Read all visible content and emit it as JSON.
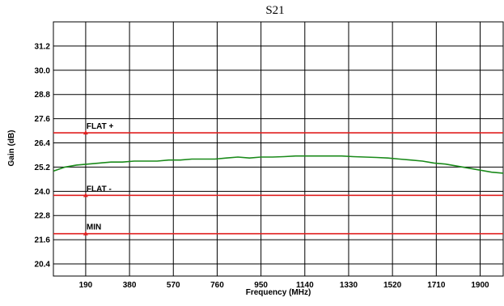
{
  "chart_data": {
    "type": "line",
    "title": "S21",
    "xlabel": "Frequency (MHz)",
    "ylabel": "Gain (dB)",
    "xlim": [
      50,
      2000
    ],
    "ylim": [
      19.8,
      32.4
    ],
    "x_ticks": [
      190,
      380,
      570,
      760,
      950,
      1140,
      1330,
      1520,
      1710,
      1900
    ],
    "x_tick_labels": [
      "190",
      "380",
      "570",
      "760",
      "950",
      "1140",
      "1330",
      "1520",
      "1710",
      "1900"
    ],
    "y_ticks": [
      20.4,
      21.6,
      22.8,
      24.0,
      25.2,
      26.4,
      27.6,
      28.8,
      30.0,
      31.2
    ],
    "y_tick_labels": [
      "20.4",
      "21.6",
      "22.8",
      "24.0",
      "25.2",
      "26.4",
      "27.6",
      "28.8",
      "30.0",
      "31.2"
    ],
    "grid": true,
    "series": [
      {
        "color": "#1a8a1a",
        "x": [
          50,
          100,
          150,
          200,
          250,
          300,
          350,
          400,
          450,
          500,
          550,
          600,
          650,
          700,
          750,
          800,
          850,
          900,
          950,
          1000,
          1050,
          1100,
          1150,
          1200,
          1250,
          1300,
          1350,
          1400,
          1450,
          1500,
          1550,
          1600,
          1650,
          1700,
          1750,
          1800,
          1850,
          1900,
          1950,
          2000
        ],
        "y": [
          25.0,
          25.2,
          25.3,
          25.35,
          25.4,
          25.45,
          25.45,
          25.5,
          25.5,
          25.5,
          25.55,
          25.55,
          25.6,
          25.6,
          25.6,
          25.65,
          25.7,
          25.65,
          25.7,
          25.7,
          25.72,
          25.75,
          25.75,
          25.75,
          25.75,
          25.75,
          25.72,
          25.7,
          25.68,
          25.65,
          25.6,
          25.55,
          25.5,
          25.4,
          25.35,
          25.25,
          25.15,
          25.05,
          24.95,
          24.9
        ]
      }
    ],
    "reference_lines": [
      {
        "label": "FLAT +",
        "y": 26.9,
        "color": "#e02020",
        "marker_x": 190
      },
      {
        "label": "FLAT -",
        "y": 23.8,
        "color": "#e02020",
        "marker_x": 190
      },
      {
        "label": "MIN",
        "y": 21.9,
        "color": "#e02020",
        "marker_x": 190
      }
    ]
  }
}
